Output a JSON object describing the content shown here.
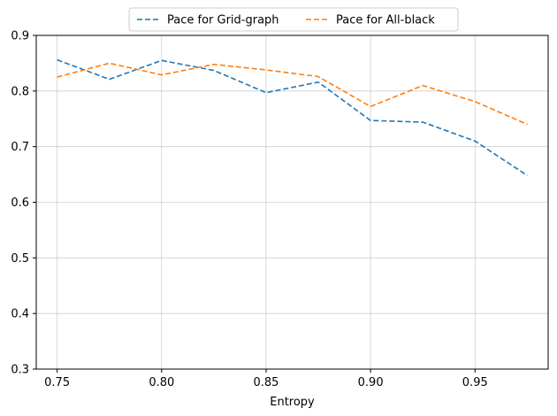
{
  "chart_data": {
    "type": "line",
    "xlabel": "Entropy",
    "ylabel": "",
    "xlim": [
      0.74,
      0.985
    ],
    "ylim": [
      0.3,
      0.9
    ],
    "grid": true,
    "legend_position": "top-center, above plot",
    "xticks": [
      0.75,
      0.8,
      0.85,
      0.9,
      0.95
    ],
    "xtick_labels": [
      "0.75",
      "0.80",
      "0.85",
      "0.90",
      "0.95"
    ],
    "yticks": [
      0.3,
      0.4,
      0.5,
      0.6,
      0.7,
      0.8,
      0.9
    ],
    "ytick_labels": [
      "0.3",
      "0.4",
      "0.5",
      "0.6",
      "0.7",
      "0.8",
      "0.9"
    ],
    "x": [
      0.75,
      0.775,
      0.8,
      0.825,
      0.85,
      0.875,
      0.9,
      0.925,
      0.95,
      0.975
    ],
    "series": [
      {
        "name": "Pace for Grid-graph",
        "color": "#1f77b4",
        "values": [
          0.856,
          0.821,
          0.855,
          0.837,
          0.797,
          0.816,
          0.747,
          0.744,
          0.71,
          0.648
        ]
      },
      {
        "name": "Pace for All-black",
        "color": "#ff7f0e",
        "values": [
          0.825,
          0.85,
          0.829,
          0.848,
          0.838,
          0.826,
          0.772,
          0.81,
          0.781,
          0.74
        ]
      }
    ]
  }
}
